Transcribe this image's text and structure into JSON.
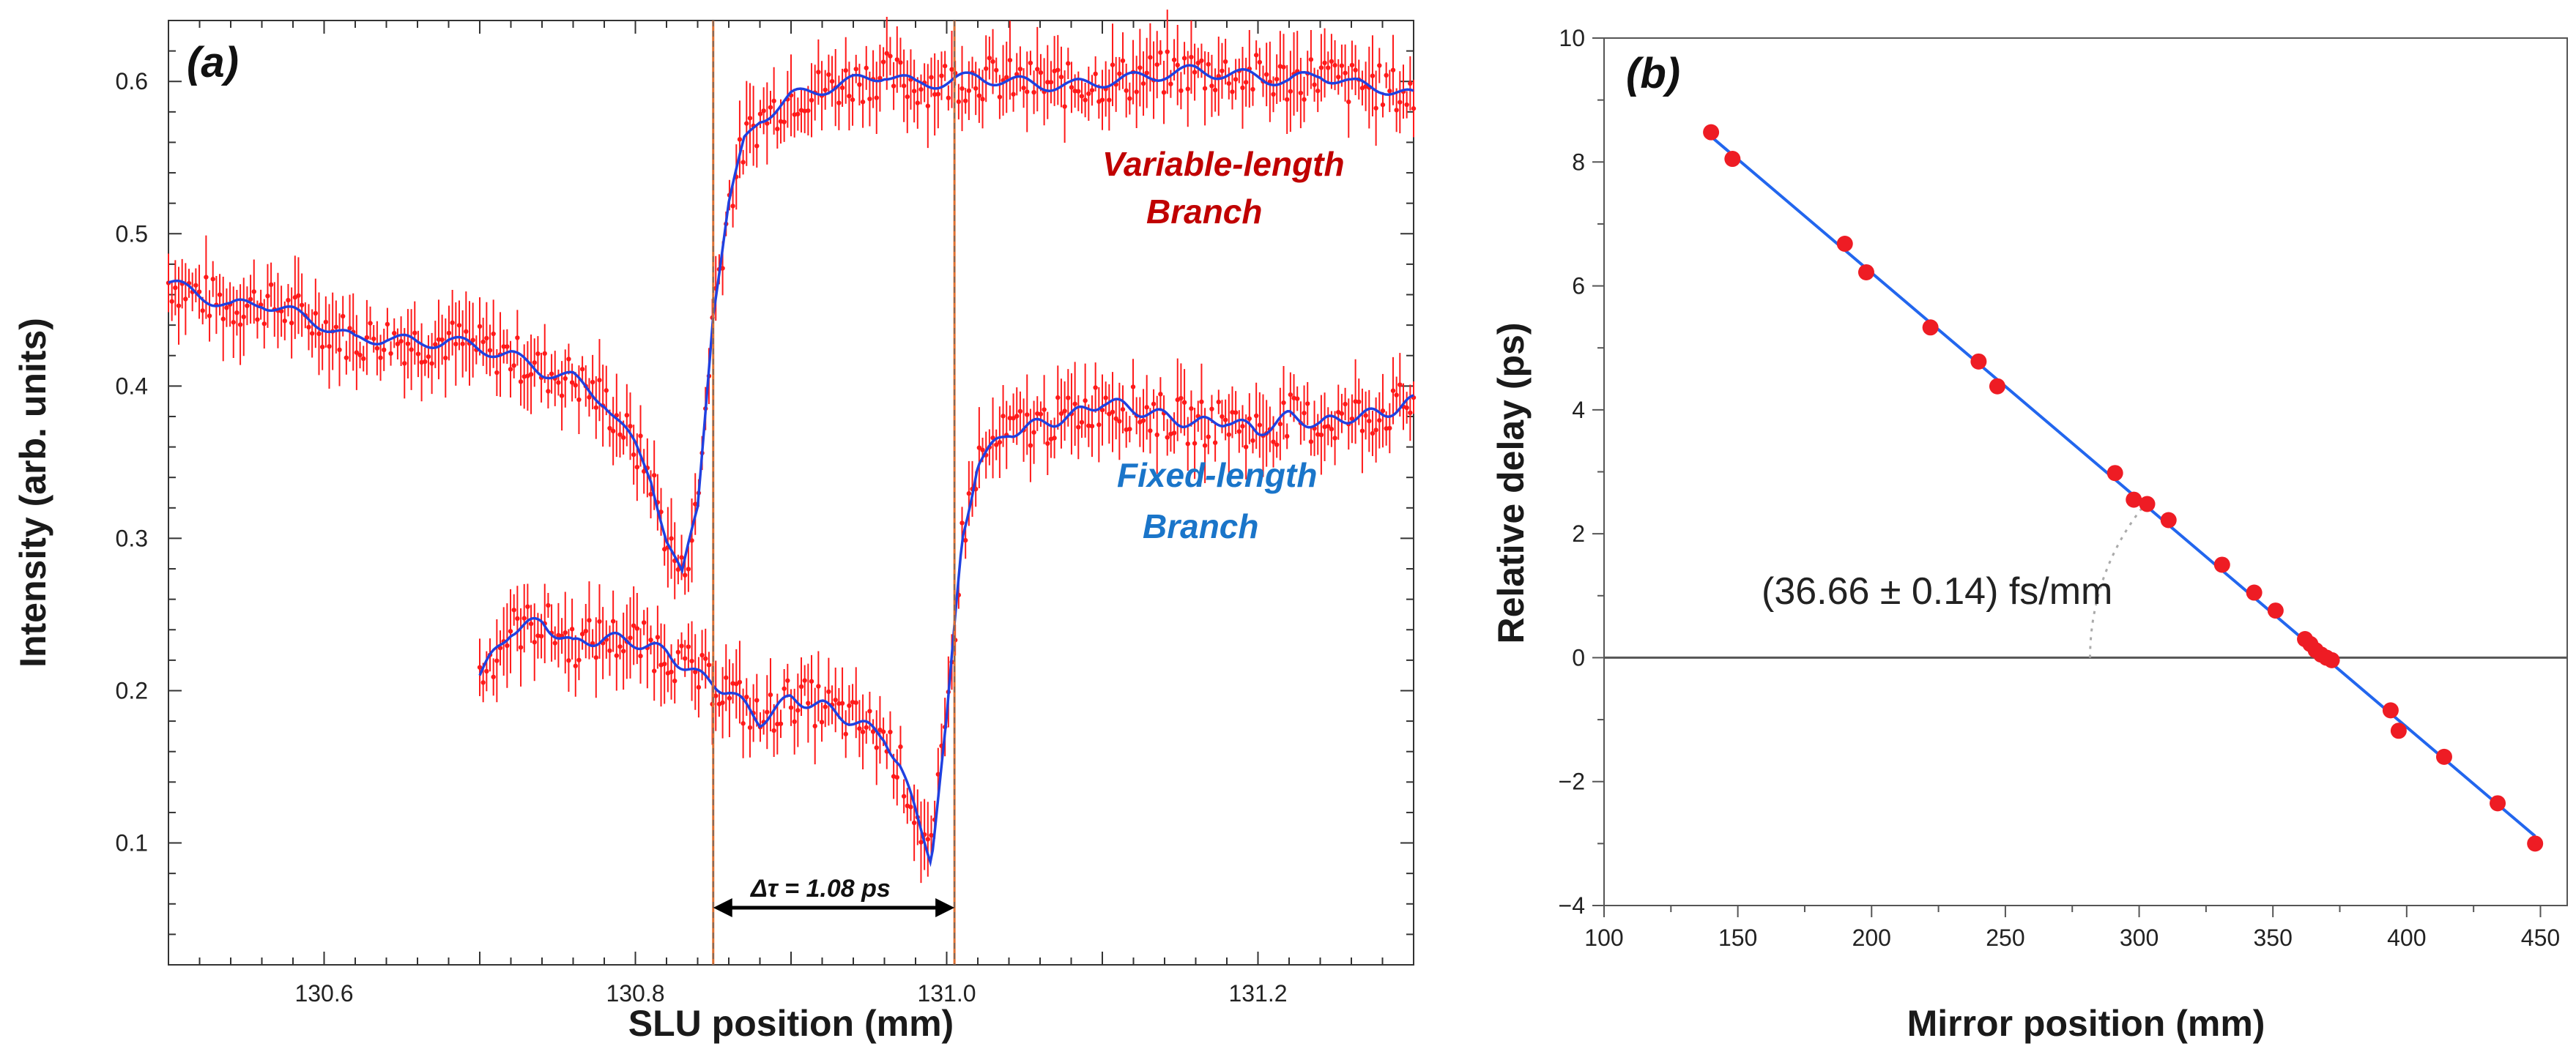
{
  "chart_data": [
    {
      "panel": "(a)",
      "type": "line",
      "xlabel": "SLU position (mm)",
      "ylabel": "Intensity (arb. units)",
      "xlim": [
        130.5,
        131.3
      ],
      "ylim": [
        0.02,
        0.64
      ],
      "xticks": [
        "130.6",
        "130.8",
        "131.0",
        "131.2"
      ],
      "yticks": [
        "0.1",
        "0.2",
        "0.3",
        "0.4",
        "0.5",
        "0.6"
      ],
      "colors": {
        "data": "#ff1a1a",
        "fit": "#2040e0",
        "variable_label": "#c00000",
        "fixed_label": "#1a75c9",
        "marker_line": "#e07030"
      },
      "series": [
        {
          "name": "Variable-length Branch",
          "label_line1": "Variable-length",
          "label_line2": "Branch",
          "x": [
            130.5,
            130.52,
            130.54,
            130.56,
            130.58,
            130.6,
            130.62,
            130.64,
            130.66,
            130.68,
            130.7,
            130.72,
            130.74,
            130.76,
            130.78,
            130.8,
            130.81,
            130.82,
            130.83,
            130.84,
            130.85,
            130.86,
            130.87,
            130.88,
            130.9,
            130.92,
            130.94,
            130.96,
            130.98,
            131.0,
            131.02,
            131.04,
            131.06,
            131.08,
            131.1,
            131.12,
            131.14,
            131.16,
            131.18,
            131.2,
            131.22,
            131.24,
            131.26,
            131.28,
            131.3
          ],
          "y": [
            0.468,
            0.46,
            0.452,
            0.455,
            0.448,
            0.44,
            0.43,
            0.432,
            0.428,
            0.43,
            0.425,
            0.42,
            0.41,
            0.405,
            0.39,
            0.36,
            0.34,
            0.3,
            0.275,
            0.32,
            0.45,
            0.52,
            0.56,
            0.575,
            0.59,
            0.595,
            0.6,
            0.605,
            0.598,
            0.6,
            0.603,
            0.6,
            0.598,
            0.597,
            0.6,
            0.602,
            0.605,
            0.607,
            0.605,
            0.603,
            0.6,
            0.605,
            0.598,
            0.596,
            0.59
          ]
        },
        {
          "name": "Fixed-length Branch",
          "label_line1": "Fixed-length",
          "label_line2": "Branch",
          "x": [
            130.7,
            130.72,
            130.74,
            130.76,
            130.78,
            130.8,
            130.82,
            130.84,
            130.86,
            130.88,
            130.9,
            130.92,
            130.94,
            130.96,
            130.97,
            130.98,
            130.99,
            131.0,
            131.01,
            131.02,
            131.04,
            131.06,
            131.08,
            131.1,
            131.12,
            131.14,
            131.16,
            131.18,
            131.2,
            131.22,
            131.24,
            131.26,
            131.28,
            131.3
          ],
          "y": [
            0.21,
            0.24,
            0.245,
            0.23,
            0.235,
            0.232,
            0.225,
            0.21,
            0.2,
            0.18,
            0.195,
            0.19,
            0.18,
            0.17,
            0.15,
            0.12,
            0.09,
            0.18,
            0.3,
            0.35,
            0.37,
            0.375,
            0.38,
            0.39,
            0.385,
            0.38,
            0.375,
            0.378,
            0.37,
            0.38,
            0.375,
            0.38,
            0.382,
            0.39
          ]
        }
      ],
      "markers": [
        130.85,
        131.005
      ],
      "delta_label": "Δτ = 1.08 ps"
    },
    {
      "panel": "(b)",
      "type": "scatter",
      "xlabel": "Mirror position (mm)",
      "ylabel": "Relative delay (ps)",
      "xlim": [
        100,
        460
      ],
      "ylim": [
        -4,
        10
      ],
      "xticks": [
        "100",
        "150",
        "200",
        "250",
        "300",
        "350",
        "400",
        "450"
      ],
      "yticks": [
        "−4",
        "−2",
        "0",
        "2",
        "4",
        "6",
        "8",
        "10"
      ],
      "colors": {
        "points": "#ee1c24",
        "fit": "#2266ee",
        "zero_line": "#555555"
      },
      "points": [
        [
          140,
          8.48
        ],
        [
          148,
          8.05
        ],
        [
          190,
          6.68
        ],
        [
          198,
          6.22
        ],
        [
          222,
          5.33
        ],
        [
          240,
          4.78
        ],
        [
          247,
          4.38
        ],
        [
          291,
          2.98
        ],
        [
          298,
          2.55
        ],
        [
          303,
          2.48
        ],
        [
          311,
          2.22
        ],
        [
          331,
          1.5
        ],
        [
          343,
          1.05
        ],
        [
          351,
          0.76
        ],
        [
          362,
          0.3
        ],
        [
          364,
          0.22
        ],
        [
          366,
          0.12
        ],
        [
          368,
          0.05
        ],
        [
          370,
          0.0
        ],
        [
          372,
          -0.04
        ],
        [
          394,
          -0.85
        ],
        [
          397,
          -1.18
        ],
        [
          414,
          -1.6
        ],
        [
          434,
          -2.35
        ],
        [
          448,
          -3.0
        ]
      ],
      "fit": {
        "x": [
          140,
          448
        ],
        "y": [
          8.41,
          -2.88
        ]
      },
      "slope_label": "(36.66 ± 0.14) fs/mm"
    }
  ]
}
